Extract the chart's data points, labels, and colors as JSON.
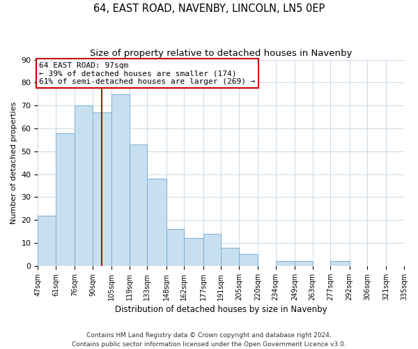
{
  "title": "64, EAST ROAD, NAVENBY, LINCOLN, LN5 0EP",
  "subtitle": "Size of property relative to detached houses in Navenby",
  "xlabel": "Distribution of detached houses by size in Navenby",
  "ylabel": "Number of detached properties",
  "bar_edges": [
    47,
    61,
    76,
    90,
    105,
    119,
    133,
    148,
    162,
    177,
    191,
    205,
    220,
    234,
    249,
    263,
    277,
    292,
    306,
    321,
    335
  ],
  "bar_heights": [
    22,
    58,
    70,
    67,
    75,
    53,
    38,
    16,
    12,
    14,
    8,
    5,
    0,
    2,
    2,
    0,
    2,
    0,
    0,
    0
  ],
  "bar_color": "#c8dff0",
  "bar_edgecolor": "#7aafd4",
  "property_line_x": 97,
  "property_line_color": "#cc0000",
  "annotation_line1": "64 EAST ROAD: 97sqm",
  "annotation_line2": "← 39% of detached houses are smaller (174)",
  "annotation_line3": "61% of semi-detached houses are larger (269) →",
  "annotation_box_color": "#ffffff",
  "annotation_box_edgecolor": "#cc0000",
  "annotation_fontsize": 8,
  "ylim": [
    0,
    90
  ],
  "yticks": [
    0,
    10,
    20,
    30,
    40,
    50,
    60,
    70,
    80,
    90
  ],
  "tick_labels": [
    "47sqm",
    "61sqm",
    "76sqm",
    "90sqm",
    "105sqm",
    "119sqm",
    "133sqm",
    "148sqm",
    "162sqm",
    "177sqm",
    "191sqm",
    "205sqm",
    "220sqm",
    "234sqm",
    "249sqm",
    "263sqm",
    "277sqm",
    "292sqm",
    "306sqm",
    "321sqm",
    "335sqm"
  ],
  "grid_color": "#c8d8e8",
  "background_color": "#ffffff",
  "footer_text": "Contains HM Land Registry data © Crown copyright and database right 2024.\nContains public sector information licensed under the Open Government Licence v3.0.",
  "title_fontsize": 10.5,
  "subtitle_fontsize": 9.5,
  "xlabel_fontsize": 8.5,
  "ylabel_fontsize": 8,
  "tick_fontsize": 7,
  "footer_fontsize": 6.5
}
